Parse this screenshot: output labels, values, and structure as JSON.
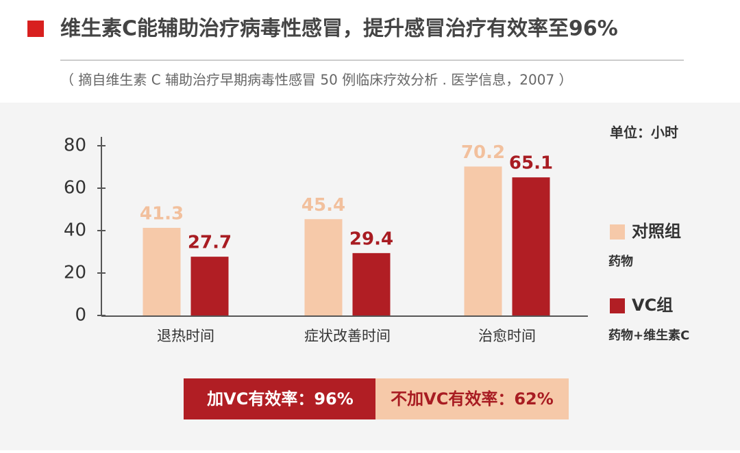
{
  "header": {
    "title": "维生素C能辅助治疗病毒性感冒，提升感冒治疗有效率至96%",
    "source": "（ 摘自维生素 C 辅助治疗早期病毒性感冒 50 例临床疗效分析 . 医学信息，2007 ）"
  },
  "chart_data": {
    "type": "bar",
    "unit": "单位：小时",
    "categories": [
      "退热时间",
      "症状改善时间",
      "治愈时间"
    ],
    "series": [
      {
        "name": "对照组",
        "description": "药物",
        "color": "#f6c9a9",
        "label_color": "#f2c09d",
        "values": [
          41.3,
          45.4,
          70.2
        ]
      },
      {
        "name": "VC组",
        "description": "药物+维生素C",
        "color": "#b11e24",
        "label_color": "#a81c22",
        "values": [
          27.7,
          29.4,
          65.1
        ]
      }
    ],
    "ylim": [
      0,
      80
    ],
    "yticks": [
      0,
      20,
      40,
      60,
      80
    ],
    "grid": false
  },
  "footer": {
    "left": "加VC有效率：96%",
    "right": "不加VC有效率：62%"
  }
}
